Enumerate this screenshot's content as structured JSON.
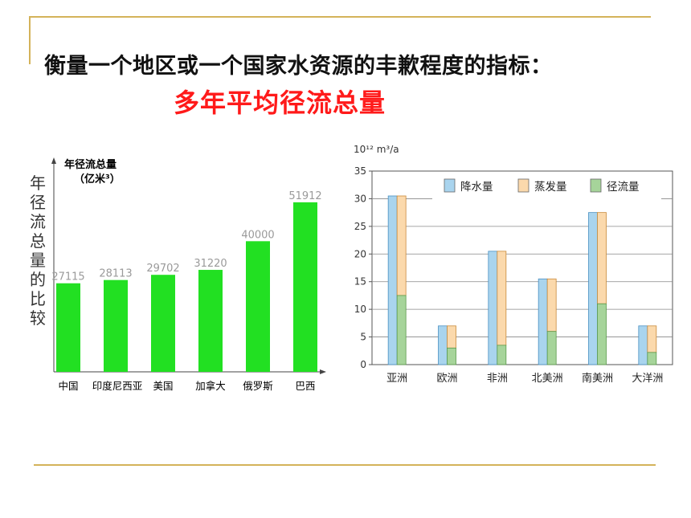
{
  "slide": {
    "heading": "衡量一个地区或一个国家水资源的丰歉程度的指标：",
    "subheading": "多年平均径流总量",
    "accent_color": "#d4b35a",
    "subheading_color": "#ff1a1a"
  },
  "chart_data": [
    {
      "type": "bar",
      "title": "年径流总量的比较",
      "ylabel": "年径流总量（亿米³）",
      "categories": [
        "中国",
        "印度尼西亚",
        "美国",
        "加拿大",
        "俄罗斯",
        "巴西"
      ],
      "values": [
        27115,
        28113,
        29702,
        31220,
        40000,
        51912
      ],
      "value_labels": [
        "27115",
        "28113",
        "29702",
        "31220",
        "40000",
        "51912"
      ],
      "ylim": [
        0,
        60000
      ],
      "bar_color": "#22e022",
      "grid": false
    },
    {
      "type": "bar",
      "yunit": "10¹² m³/a",
      "categories": [
        "亚洲",
        "欧洲",
        "非洲",
        "北美洲",
        "南美洲",
        "大洋洲"
      ],
      "ylim": [
        0,
        35
      ],
      "yticks": [
        "0",
        "5",
        "10",
        "15",
        "20",
        "25",
        "30",
        "35"
      ],
      "grid": true,
      "legend_position": "top",
      "series": [
        {
          "name": "降水量",
          "values": [
            30.5,
            7,
            20.5,
            15.5,
            27.5,
            7
          ],
          "color": "#a9d4ee"
        },
        {
          "name": "蒸发量",
          "values": [
            18,
            4,
            17,
            9.5,
            16.5,
            4.5
          ],
          "color": "#fbd9ac"
        },
        {
          "name": "径流量",
          "values": [
            12.5,
            3,
            3.5,
            6,
            11,
            2.2
          ],
          "color": "#a6d49a"
        }
      ]
    }
  ]
}
